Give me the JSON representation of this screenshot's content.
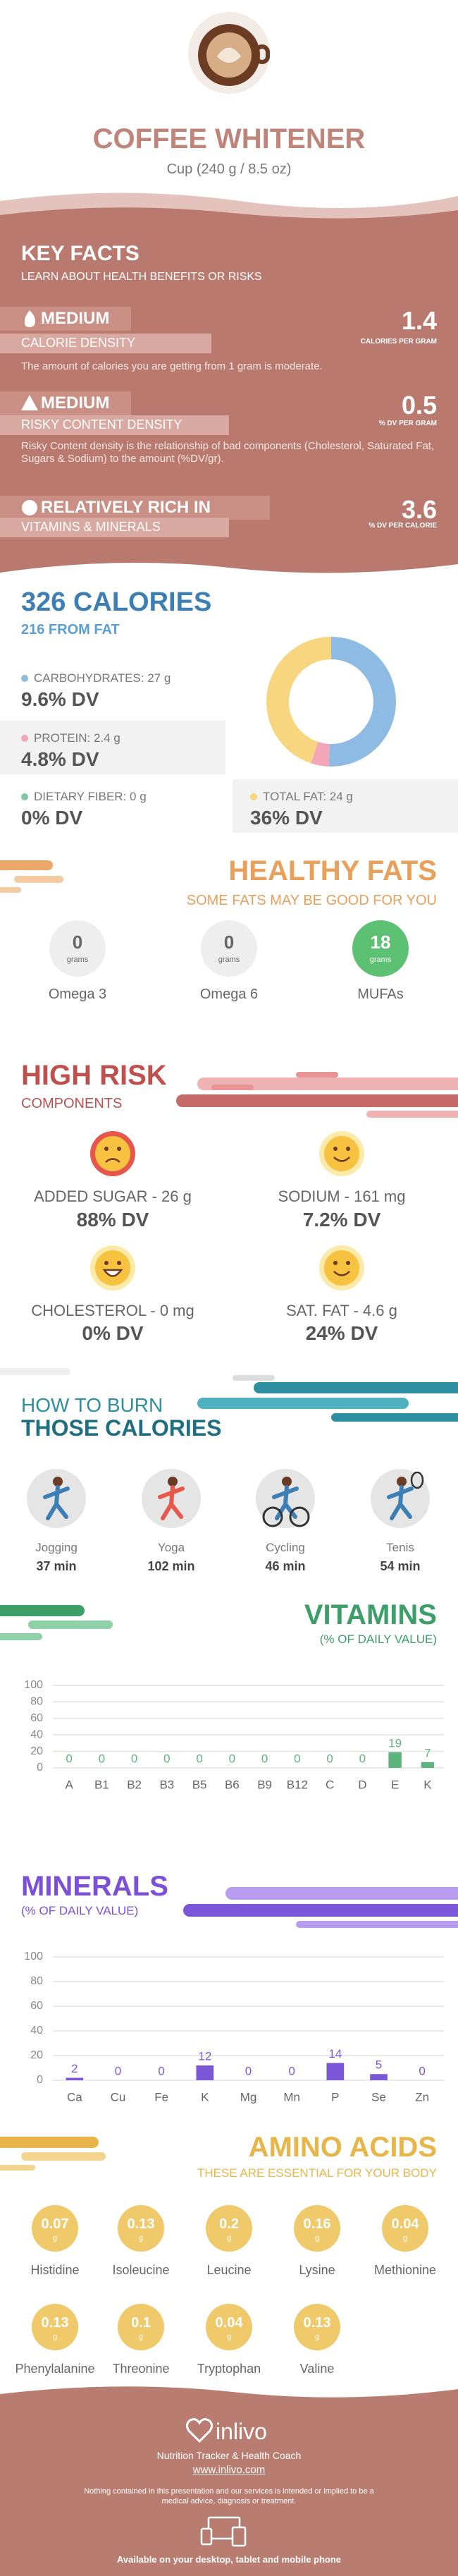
{
  "header": {
    "title": "COFFEE WHITENER",
    "serving": "Cup (240 g / 8.5 oz)"
  },
  "key_facts": {
    "title": "KEY FACTS",
    "subtitle": "LEARN ABOUT HEALTH BENEFITS OR RISKS",
    "items": [
      {
        "level": "MEDIUM",
        "name": "CALORIE DENSITY",
        "value": 1.4,
        "unit": "CALORIES PER GRAM",
        "description": "The amount of calories you are getting from 1 gram is moderate."
      },
      {
        "level": "MEDIUM",
        "name": "RISKY CONTENT DENSITY",
        "value": 0.5,
        "unit": "% DV PER GRAM",
        "description": "Risky Content density is the relationship of bad components (Cholesterol, Saturated Fat, Sugars & Sodium) to the amount (%DV/gr)."
      },
      {
        "level": "RELATIVELY RICH IN",
        "name": "VITAMINS & MINERALS",
        "value": 3.6,
        "unit": "% DV PER CALORIE"
      }
    ]
  },
  "calories": {
    "title": "326 CALORIES",
    "subtitle": "216 FROM FAT",
    "nutrients": [
      {
        "label": "CARBOHYDRATES: 27 g",
        "grams": 27,
        "dv": "9.6% DV",
        "color": "#8dbbe3"
      },
      {
        "label": "PROTEIN: 2.4 g",
        "grams": 2.4,
        "dv": "4.8% DV",
        "color": "#f2a6b8"
      },
      {
        "label": "DIETARY FIBER: 0 g",
        "grams": 0,
        "dv": "0% DV",
        "color": "#7fcaa6"
      },
      {
        "label": "TOTAL FAT: 24 g",
        "grams": 24,
        "dv": "36% DV",
        "color": "#f8d67f"
      }
    ]
  },
  "healthy_fats": {
    "title": "HEALTHY FATS",
    "subtitle": "SOME FATS MAY BE GOOD FOR YOU",
    "unit": "grams",
    "items": [
      {
        "name": "Omega 3",
        "value": 0,
        "color": "#eeeeee"
      },
      {
        "name": "Omega 6",
        "value": 0,
        "color": "#eeeeee"
      },
      {
        "name": "MUFAs",
        "value": 18,
        "color": "#5cc172"
      }
    ]
  },
  "high_risk": {
    "title": "HIGH RISK",
    "subtitle": "COMPONENTS",
    "items": [
      {
        "label": "ADDED SUGAR - 26 g",
        "dv": "88% DV"
      },
      {
        "label": "SODIUM - 161 mg",
        "dv": "7.2% DV"
      },
      {
        "label": "CHOLESTEROL - 0 mg",
        "dv": "0% DV"
      },
      {
        "label": "SAT. FAT - 4.6 g",
        "dv": "24% DV"
      }
    ]
  },
  "burn": {
    "title": "HOW TO BURN",
    "subtitle": "THOSE CALORIES",
    "activities": [
      {
        "name": "Jogging",
        "time": "37 min"
      },
      {
        "name": "Yoga",
        "time": "102 min"
      },
      {
        "name": "Cycling",
        "time": "46 min"
      },
      {
        "name": "Tenis",
        "time": "54 min"
      }
    ]
  },
  "chart_data": [
    {
      "type": "bar",
      "title": "VITAMINS",
      "subtitle": "(% OF DAILY VALUE)",
      "categories": [
        "A",
        "B1",
        "B2",
        "B3",
        "B5",
        "B6",
        "B9",
        "B12",
        "C",
        "D",
        "E",
        "K"
      ],
      "values": [
        0,
        0,
        0,
        0,
        0,
        0,
        0,
        0,
        0,
        0,
        19,
        7
      ],
      "color": "#5cb57c",
      "ylim": [
        0,
        100
      ],
      "yticks": [
        0,
        20,
        40,
        60,
        80,
        100
      ],
      "grid": true
    },
    {
      "type": "bar",
      "title": "MINERALS",
      "subtitle": "(% OF DAILY VALUE)",
      "categories": [
        "Ca",
        "Cu",
        "Fe",
        "K",
        "Mg",
        "Mn",
        "P",
        "Se",
        "Zn"
      ],
      "values": [
        2,
        0,
        0,
        12,
        0,
        0,
        14,
        5,
        0
      ],
      "color": "#7b56d8",
      "ylim": [
        0,
        100
      ],
      "yticks": [
        0,
        20,
        40,
        60,
        80,
        100
      ],
      "grid": true
    }
  ],
  "amino_acids": {
    "title": "AMINO ACIDS",
    "subtitle": "THESE ARE ESSENTIAL FOR YOUR BODY",
    "unit": "g",
    "items": [
      {
        "name": "Histidine",
        "value": 0.07
      },
      {
        "name": "Isoleucine",
        "value": 0.13
      },
      {
        "name": "Leucine",
        "value": 0.2
      },
      {
        "name": "Lysine",
        "value": 0.16
      },
      {
        "name": "Methionine",
        "value": 0.04
      },
      {
        "name": "Phenylalanine",
        "value": 0.13
      },
      {
        "name": "Threonine",
        "value": 0.1
      },
      {
        "name": "Tryptophan",
        "value": 0.04
      },
      {
        "name": "Valine",
        "value": 0.13
      }
    ]
  },
  "footer": {
    "brand": "inlivo",
    "tagline": "Nutrition Tracker & Health Coach",
    "url": "www.inlivo.com",
    "disclaimer": "Nothing contained in this presentation and our services is intended or implied to be a medical advice, diagnosis or treatment.",
    "availability": "Available on your desktop, tablet and mobile phone"
  }
}
